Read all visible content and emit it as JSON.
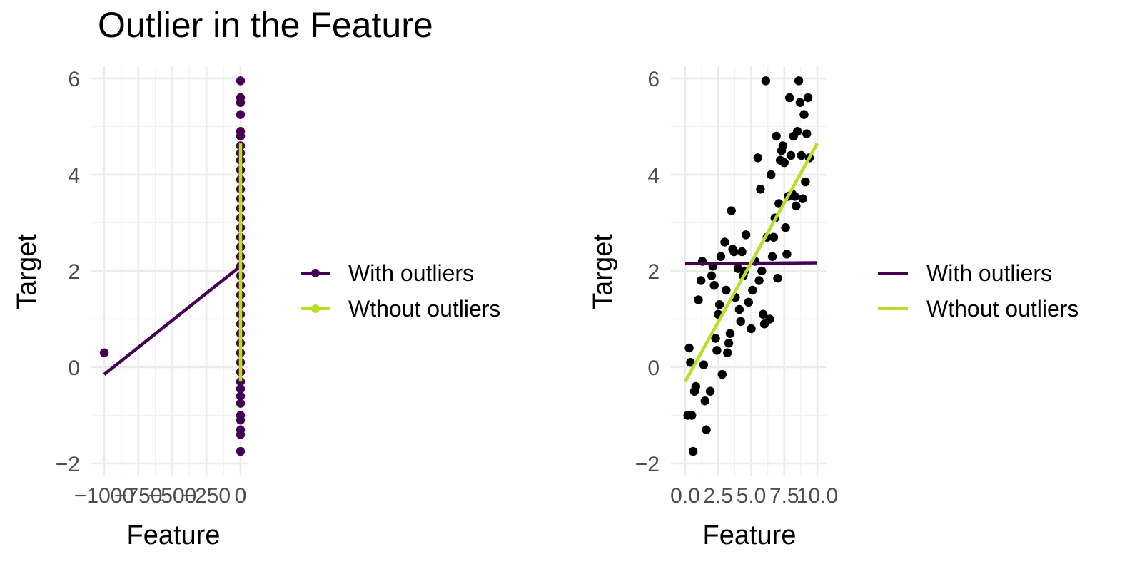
{
  "title": "Outlier in the Feature",
  "colors": {
    "with_outliers": "#440154",
    "without_outliers": "#b8de29",
    "points_right": "#000000"
  },
  "chart_data": [
    {
      "type": "scatter",
      "panel": "left",
      "xlabel": "Feature",
      "ylabel": "Target",
      "xlim": [
        -1000,
        10
      ],
      "ylim": [
        -2,
        6
      ],
      "x_ticks": [
        -1000,
        -750,
        -500,
        -250,
        0
      ],
      "x_tick_labels": [
        "−1000",
        "−750",
        "−500",
        "−250",
        "0"
      ],
      "y_ticks": [
        -2,
        0,
        2,
        4,
        6
      ],
      "y_tick_labels": [
        "−2",
        "0",
        "2",
        "4",
        "6"
      ],
      "grid": true,
      "legend_position": "right",
      "series": [
        {
          "name": "With outliers",
          "kind": "points+line",
          "color": "#440154",
          "points": [
            [
              -1000,
              0.3
            ],
            [
              0,
              5.95
            ],
            [
              0,
              5.6
            ],
            [
              0,
              5.5
            ],
            [
              0,
              5.25
            ],
            [
              0,
              4.9
            ],
            [
              0,
              4.8
            ],
            [
              0,
              4.6
            ],
            [
              0,
              4.45
            ],
            [
              0,
              4.3
            ],
            [
              0,
              4.1
            ],
            [
              0,
              3.9
            ],
            [
              0,
              3.7
            ],
            [
              0,
              3.5
            ],
            [
              0,
              3.3
            ],
            [
              0,
              3.1
            ],
            [
              0,
              2.9
            ],
            [
              0,
              2.7
            ],
            [
              0,
              2.5
            ],
            [
              0,
              2.3
            ],
            [
              0,
              2.1
            ],
            [
              0,
              1.9
            ],
            [
              0,
              1.7
            ],
            [
              0,
              1.5
            ],
            [
              0,
              1.3
            ],
            [
              0,
              1.1
            ],
            [
              0,
              0.9
            ],
            [
              0,
              0.7
            ],
            [
              0,
              0.5
            ],
            [
              0,
              0.3
            ],
            [
              0,
              0.1
            ],
            [
              0,
              -0.1
            ],
            [
              0,
              -0.3
            ],
            [
              0,
              -0.45
            ],
            [
              0,
              -0.6
            ],
            [
              0,
              -0.75
            ],
            [
              0,
              -1.0
            ],
            [
              0,
              -1.1
            ],
            [
              0,
              -1.3
            ],
            [
              0,
              -1.4
            ],
            [
              0,
              -1.75
            ]
          ],
          "line": [
            [
              -1000,
              -0.15
            ],
            [
              0,
              2.1
            ]
          ]
        },
        {
          "name": "Wthout outliers",
          "kind": "points+line",
          "color": "#b8de29",
          "points": [],
          "line": [
            [
              0,
              -0.3
            ],
            [
              0,
              4.65
            ]
          ]
        }
      ]
    },
    {
      "type": "scatter",
      "panel": "right",
      "xlabel": "Feature",
      "ylabel": "Target",
      "xlim": [
        0,
        10
      ],
      "ylim": [
        -2,
        6
      ],
      "x_ticks": [
        0,
        2.5,
        5,
        7.5,
        10
      ],
      "x_tick_labels": [
        "0.0",
        "2.5",
        "5.0",
        "7.5",
        "10.0"
      ],
      "y_ticks": [
        -2,
        0,
        2,
        4,
        6
      ],
      "y_tick_labels": [
        "−2",
        "0",
        "2",
        "4",
        "6"
      ],
      "grid": true,
      "legend_position": "right",
      "points": [
        [
          0.3,
          0.4
        ],
        [
          0.2,
          -1.0
        ],
        [
          0.5,
          -1.0
        ],
        [
          0.8,
          -0.4
        ],
        [
          0.7,
          -0.5
        ],
        [
          0.4,
          0.1
        ],
        [
          0.6,
          -1.75
        ],
        [
          1.0,
          1.4
        ],
        [
          1.2,
          1.8
        ],
        [
          1.3,
          2.2
        ],
        [
          1.4,
          0.05
        ],
        [
          1.5,
          -0.7
        ],
        [
          1.6,
          -1.3
        ],
        [
          1.9,
          -0.5
        ],
        [
          2.0,
          1.9
        ],
        [
          2.1,
          2.1
        ],
        [
          2.2,
          1.7
        ],
        [
          2.3,
          0.6
        ],
        [
          2.4,
          0.35
        ],
        [
          2.5,
          1.1
        ],
        [
          2.6,
          1.3
        ],
        [
          2.7,
          2.3
        ],
        [
          2.8,
          -0.15
        ],
        [
          3.0,
          2.6
        ],
        [
          3.1,
          1.6
        ],
        [
          3.2,
          0.3
        ],
        [
          3.3,
          0.5
        ],
        [
          3.4,
          0.7
        ],
        [
          3.5,
          3.25
        ],
        [
          3.6,
          2.45
        ],
        [
          3.7,
          2.4
        ],
        [
          3.8,
          1.45
        ],
        [
          4.0,
          2.05
        ],
        [
          4.1,
          1.2
        ],
        [
          4.2,
          0.95
        ],
        [
          4.3,
          2.4
        ],
        [
          4.4,
          1.9
        ],
        [
          4.5,
          2.0
        ],
        [
          4.6,
          2.75
        ],
        [
          4.8,
          1.35
        ],
        [
          5.0,
          0.8
        ],
        [
          5.1,
          1.6
        ],
        [
          5.3,
          2.2
        ],
        [
          5.5,
          4.35
        ],
        [
          5.6,
          1.8
        ],
        [
          5.7,
          3.7
        ],
        [
          5.8,
          2.0
        ],
        [
          5.9,
          1.1
        ],
        [
          6.0,
          0.9
        ],
        [
          6.1,
          5.95
        ],
        [
          6.2,
          2.7
        ],
        [
          6.4,
          1.0
        ],
        [
          6.5,
          4.0
        ],
        [
          6.6,
          2.3
        ],
        [
          6.7,
          2.7
        ],
        [
          6.8,
          3.1
        ],
        [
          6.9,
          4.8
        ],
        [
          7.0,
          1.85
        ],
        [
          7.1,
          3.4
        ],
        [
          7.2,
          4.3
        ],
        [
          7.3,
          4.5
        ],
        [
          7.4,
          4.6
        ],
        [
          7.5,
          4.25
        ],
        [
          7.6,
          2.9
        ],
        [
          7.7,
          2.35
        ],
        [
          7.8,
          3.55
        ],
        [
          7.9,
          5.6
        ],
        [
          8.0,
          4.4
        ],
        [
          8.1,
          3.6
        ],
        [
          8.2,
          4.8
        ],
        [
          8.3,
          3.55
        ],
        [
          8.4,
          3.35
        ],
        [
          8.5,
          4.9
        ],
        [
          8.6,
          5.95
        ],
        [
          8.7,
          5.5
        ],
        [
          8.8,
          4.4
        ],
        [
          8.9,
          3.5
        ],
        [
          9.0,
          5.25
        ],
        [
          9.1,
          3.85
        ],
        [
          9.2,
          4.85
        ],
        [
          9.3,
          5.6
        ],
        [
          9.4,
          4.35
        ]
      ],
      "series": [
        {
          "name": "With outliers",
          "kind": "line",
          "color": "#440154",
          "line": [
            [
              0,
              2.15
            ],
            [
              10,
              2.17
            ]
          ]
        },
        {
          "name": "Wthout outliers",
          "kind": "line",
          "color": "#b8de29",
          "line": [
            [
              0,
              -0.3
            ],
            [
              10,
              4.65
            ]
          ]
        }
      ]
    }
  ],
  "legends": [
    {
      "panel": "left",
      "items": [
        "With outliers",
        "Wthout outliers"
      ]
    },
    {
      "panel": "right",
      "items": [
        "With outliers",
        "Wthout outliers"
      ]
    }
  ]
}
